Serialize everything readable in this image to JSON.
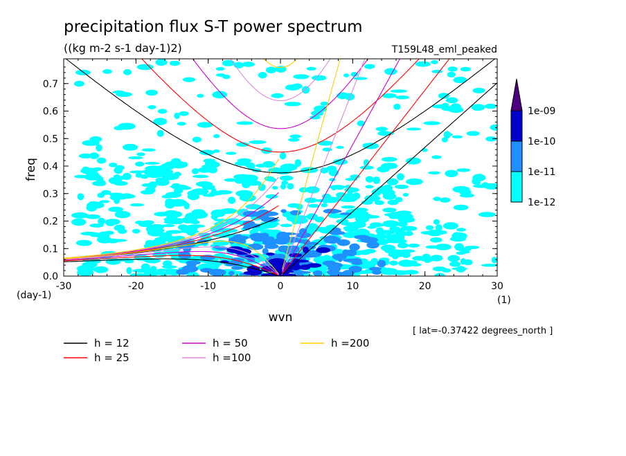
{
  "chart_data": {
    "type": "heatmap",
    "title": "precipitation flux S-T power spectrum",
    "subtitle": "((kg m-2 s-1 day-1)2)",
    "run_label": "T159L48_eml_peaked",
    "xlabel": "wvn",
    "ylabel": "freq",
    "x_unit": "(1)",
    "y_unit": "(day-1)",
    "xlim": [
      -30,
      30
    ],
    "ylim": [
      0,
      0.79
    ],
    "x_ticks": [
      -30,
      -20,
      -10,
      0,
      10,
      20,
      30
    ],
    "x_tick_labels": [
      "-30",
      "-20",
      "-10",
      "0",
      "10",
      "20",
      "30"
    ],
    "y_ticks": [
      0,
      0.1,
      0.2,
      0.3,
      0.4,
      0.5,
      0.6,
      0.7
    ],
    "y_tick_labels": [
      "0.0",
      "0.1",
      "0.2",
      "0.3",
      "0.4",
      "0.5",
      "0.6",
      "0.7"
    ],
    "lat_note": "[ lat=-0.37422 degrees_north ]",
    "colorbar": {
      "levels": [
        "1e-12",
        "1e-11",
        "1e-10",
        "1e-09"
      ],
      "colors": [
        "#00ffff",
        "#1e90ff",
        "#0000cd",
        "#4b0082"
      ]
    },
    "series": [
      {
        "name": "h = 12",
        "color": "#000000",
        "h": 12
      },
      {
        "name": "h = 25",
        "color": "#ff0000",
        "h": 25
      },
      {
        "name": "h = 50",
        "color": "#cc00cc",
        "h": 50
      },
      {
        "name": "h =100",
        "color": "#dd88dd",
        "h": 100
      },
      {
        "name": "h =200",
        "color": "#ffcc00",
        "h": 200
      }
    ],
    "density_regions": [
      {
        "level": 1,
        "x": [
          -28,
          30
        ],
        "y": [
          0.0,
          0.78
        ],
        "density": 0.18
      },
      {
        "level": 1,
        "x": [
          -28,
          18
        ],
        "y": [
          0.0,
          0.42
        ],
        "density": 0.55
      },
      {
        "level": 1,
        "x": [
          -20,
          25
        ],
        "y": [
          0.0,
          0.2
        ],
        "density": 0.75
      },
      {
        "level": 2,
        "x": [
          -14,
          14
        ],
        "y": [
          0.0,
          0.15
        ],
        "density": 0.55
      },
      {
        "level": 2,
        "x": [
          -6,
          10
        ],
        "y": [
          0.0,
          0.24
        ],
        "density": 0.5
      },
      {
        "level": 3,
        "x": [
          -8,
          6
        ],
        "y": [
          0.0,
          0.1
        ],
        "density": 0.5
      },
      {
        "level": 3,
        "x": [
          -3,
          5
        ],
        "y": [
          0.0,
          0.04
        ],
        "density": 0.8
      }
    ]
  }
}
